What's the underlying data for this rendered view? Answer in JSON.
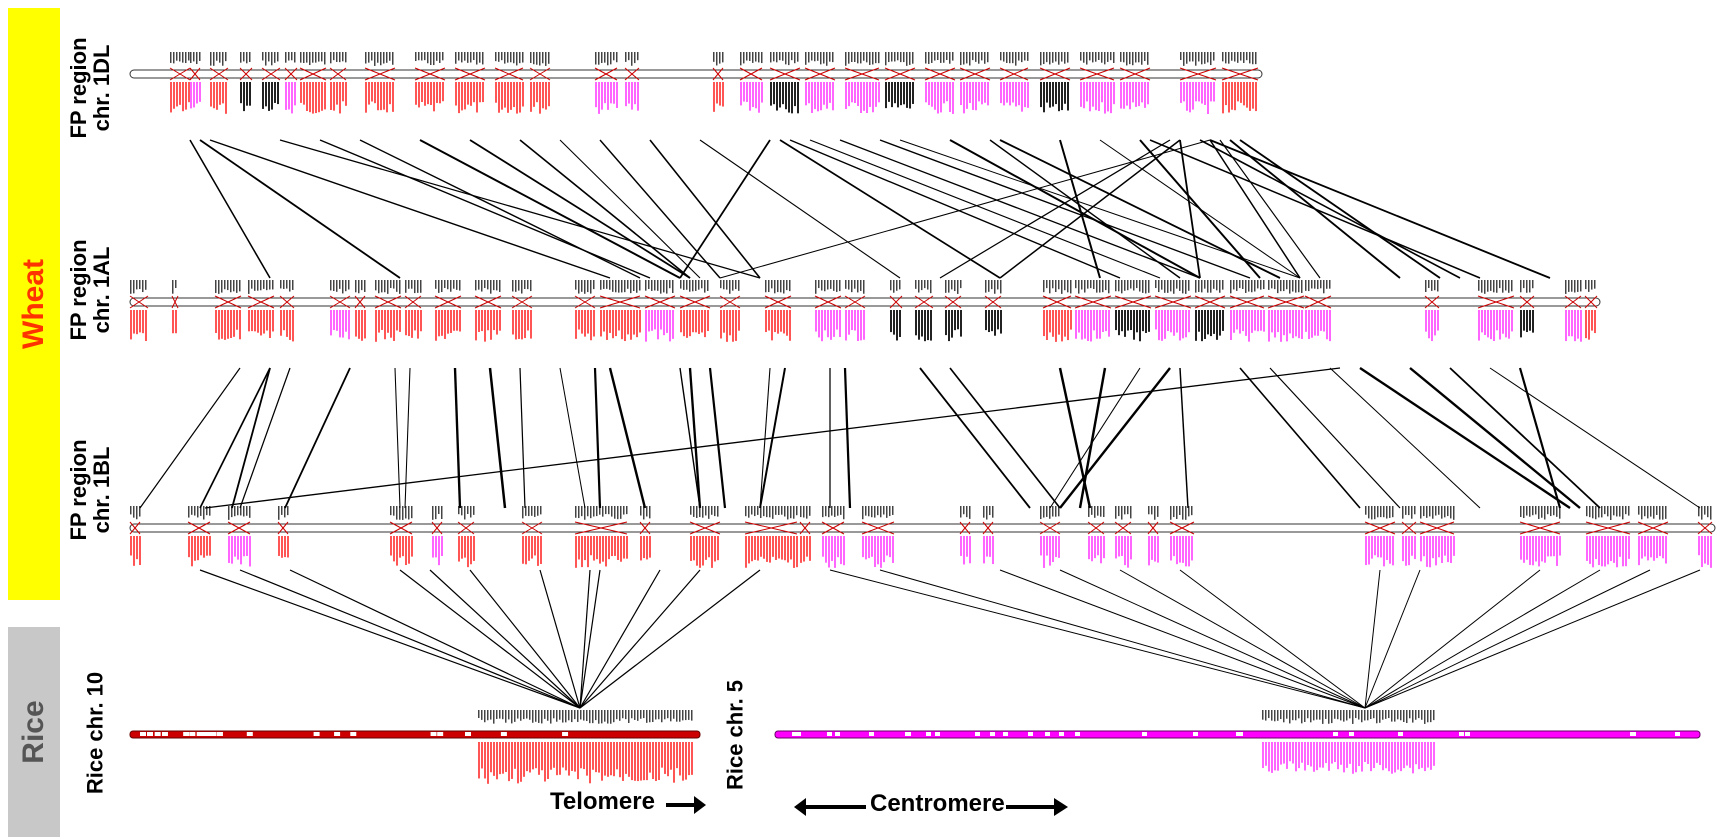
{
  "species": {
    "wheat": {
      "label": "Wheat",
      "band_color": "#ffff00",
      "text_color": "#ff3300"
    },
    "rice": {
      "label": "Rice",
      "band_color": "#c8c8c8",
      "text_color": "#555555"
    }
  },
  "tracks": [
    {
      "id": "1DL",
      "line1": "FP region",
      "line2": "chr. 1DL"
    },
    {
      "id": "1AL",
      "line1": "FP region",
      "line2": "chr. 1AL"
    },
    {
      "id": "1BL",
      "line1": "FP region",
      "line2": "chr. 1BL"
    },
    {
      "id": "rice10",
      "line1": "Rice chr. 10"
    },
    {
      "id": "rice5",
      "line1": "Rice chr. 5"
    }
  ],
  "annotations": {
    "telomere": "Telomere",
    "centromere": "Centromere"
  },
  "colors": {
    "rice10_chromosome": "#cc0000",
    "rice5_chromosome": "#ff00ff",
    "marker_pink": "#ff66ff",
    "marker_red": "#ff5555",
    "marker_black": "#222222",
    "link_line": "#000000"
  }
}
